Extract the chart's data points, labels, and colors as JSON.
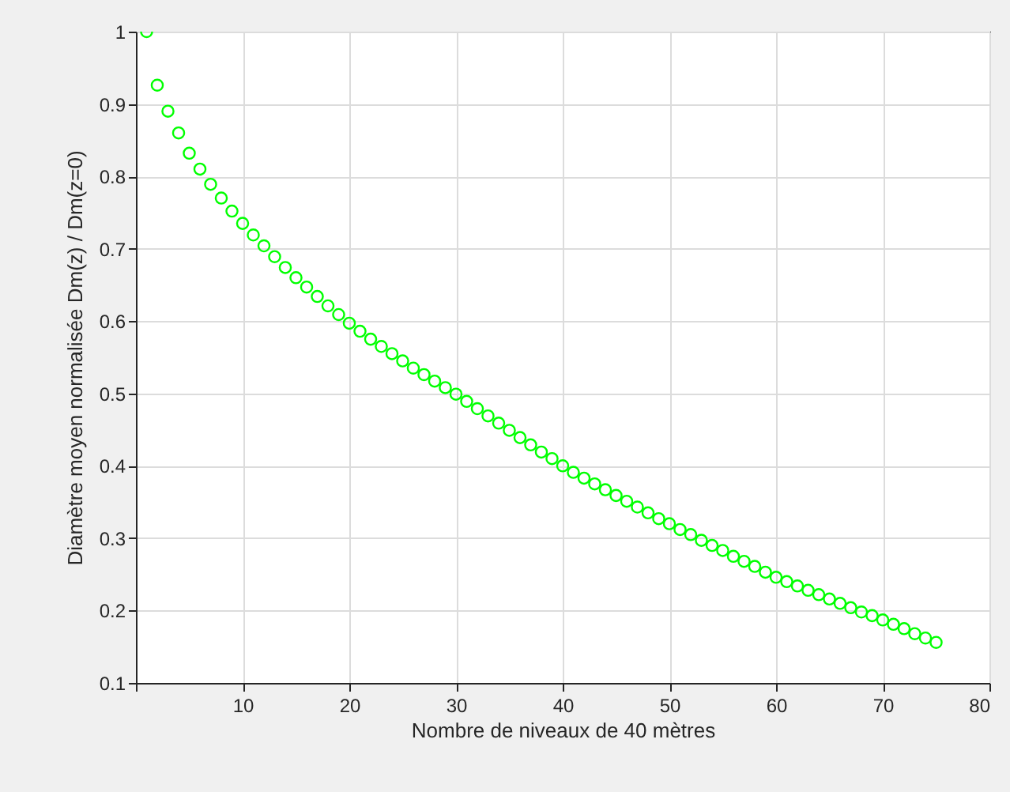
{
  "chart_data": {
    "type": "scatter",
    "xlabel": "Nombre de niveaux de 40 mètres",
    "ylabel": "Diamètre moyen normalisée Dm(z) / Dm(z=0)",
    "x": [
      1,
      2,
      3,
      4,
      5,
      6,
      7,
      8,
      9,
      10,
      11,
      12,
      13,
      14,
      15,
      16,
      17,
      18,
      19,
      20,
      21,
      22,
      23,
      24,
      25,
      26,
      27,
      28,
      29,
      30,
      31,
      32,
      33,
      34,
      35,
      36,
      37,
      38,
      39,
      40,
      41,
      42,
      43,
      44,
      45,
      46,
      47,
      48,
      49,
      50,
      51,
      52,
      53,
      54,
      55,
      56,
      57,
      58,
      59,
      60,
      61,
      62,
      63,
      64,
      65,
      66,
      67,
      68,
      69,
      70,
      71,
      72,
      73,
      74,
      75
    ],
    "series": [
      {
        "color": "#00ff00",
        "values": [
          1.0,
          0.926,
          0.89,
          0.86,
          0.832,
          0.81,
          0.789,
          0.77,
          0.752,
          0.735,
          0.719,
          0.704,
          0.689,
          0.674,
          0.66,
          0.647,
          0.634,
          0.621,
          0.609,
          0.597,
          0.586,
          0.575,
          0.565,
          0.555,
          0.545,
          0.535,
          0.526,
          0.517,
          0.508,
          0.499,
          0.489,
          0.479,
          0.469,
          0.459,
          0.449,
          0.439,
          0.429,
          0.419,
          0.41,
          0.4,
          0.391,
          0.383,
          0.375,
          0.367,
          0.359,
          0.351,
          0.343,
          0.335,
          0.327,
          0.32,
          0.312,
          0.305,
          0.297,
          0.29,
          0.283,
          0.275,
          0.268,
          0.261,
          0.253,
          0.246,
          0.24,
          0.234,
          0.228,
          0.222,
          0.216,
          0.21,
          0.204,
          0.198,
          0.193,
          0.187,
          0.181,
          0.175,
          0.168,
          0.162,
          0.156
        ]
      }
    ],
    "xlim": [
      0,
      80
    ],
    "xticks": [
      {
        "value": 0,
        "label": null
      },
      10,
      20,
      30,
      40,
      50,
      60,
      70,
      80
    ],
    "ylim": [
      0.1,
      1
    ],
    "yticks": [
      0.1,
      0.2,
      0.3,
      0.4,
      0.5,
      0.6,
      0.7,
      0.8,
      0.9,
      1
    ],
    "grid": true,
    "marker": "circle"
  }
}
